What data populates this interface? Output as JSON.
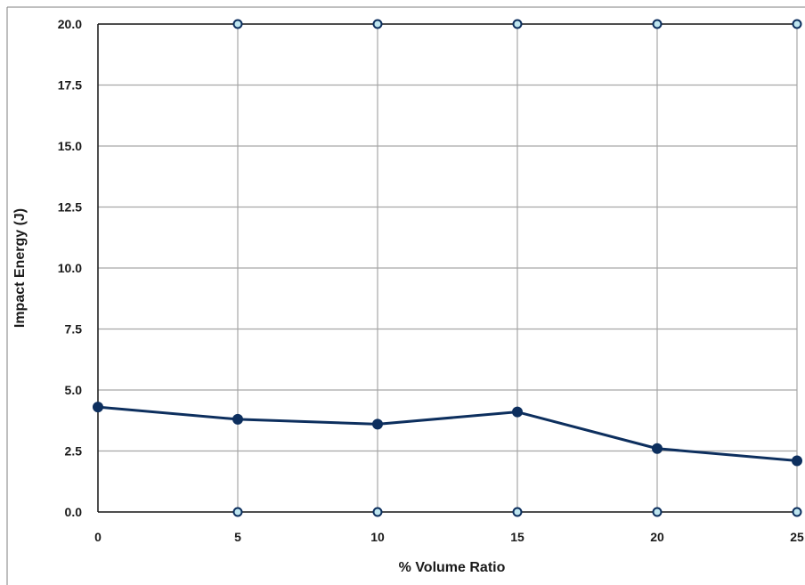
{
  "chart_data": {
    "type": "line",
    "title": "",
    "xlabel": "% Volume Ratio",
    "ylabel": "Impact Energy (J)",
    "xlim": [
      0,
      25
    ],
    "ylim": [
      0,
      20
    ],
    "x_ticks": [
      "0",
      "5",
      "10",
      "15",
      "20",
      "25"
    ],
    "y_ticks": [
      "0.0",
      "2.5",
      "5.0",
      "7.5",
      "10.0",
      "12.5",
      "15.0",
      "17.5",
      "20.0"
    ],
    "grid": true,
    "legend": "none",
    "series": [
      {
        "x": [
          0,
          5,
          10,
          15,
          20,
          25
        ],
        "values": [
          4.3,
          3.8,
          3.6,
          4.1,
          2.6,
          2.1
        ],
        "color": "#0d2f5e",
        "marker": "filled-circle"
      }
    ],
    "endpoint_markers": {
      "x": [
        5,
        10,
        15,
        20,
        25
      ],
      "top_value": 20,
      "bottom_value": 0,
      "color": "#0d2f5e",
      "fill": "#bfe6f0",
      "marker": "hollow-circle"
    },
    "colors": {
      "grid": "#a6a6a6",
      "axis": "#1a1a1a",
      "frame": "#7f7f7f",
      "line": "#0d2f5e"
    }
  }
}
